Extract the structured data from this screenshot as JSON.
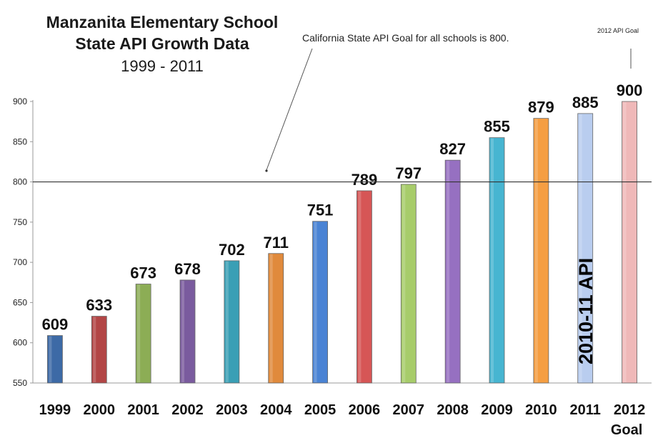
{
  "chart_data": {
    "type": "bar",
    "title": "Manzanita Elementary School",
    "subtitle_line2": "State API Growth Data",
    "subtitle_years": "1999 - 2011",
    "categories": [
      "1999",
      "2000",
      "2001",
      "2002",
      "2003",
      "2004",
      "2005",
      "2006",
      "2007",
      "2008",
      "2009",
      "2010",
      "2011",
      "2012"
    ],
    "category_sublabel": {
      "2012": "Goal"
    },
    "values": [
      609,
      633,
      673,
      678,
      702,
      711,
      751,
      789,
      797,
      827,
      855,
      879,
      885,
      900
    ],
    "colors": [
      "#3d6aa6",
      "#b24646",
      "#8cad55",
      "#7a5b9e",
      "#3a9fb5",
      "#e08a3c",
      "#4a83d4",
      "#d65656",
      "#a7cc6a",
      "#9670c1",
      "#47b5d1",
      "#f59e42",
      "#b9cdef",
      "#efb8b8"
    ],
    "ylim": [
      550,
      900
    ],
    "yticks": [
      550,
      600,
      650,
      700,
      750,
      800,
      850,
      900
    ],
    "reference_line": 800,
    "annotations": {
      "goal_note": "California State API Goal for all schools is 800.",
      "goal_2012": "2012 API Goal",
      "bar_2011_text": "2010-11 API"
    },
    "grid": false,
    "legend": "none"
  }
}
